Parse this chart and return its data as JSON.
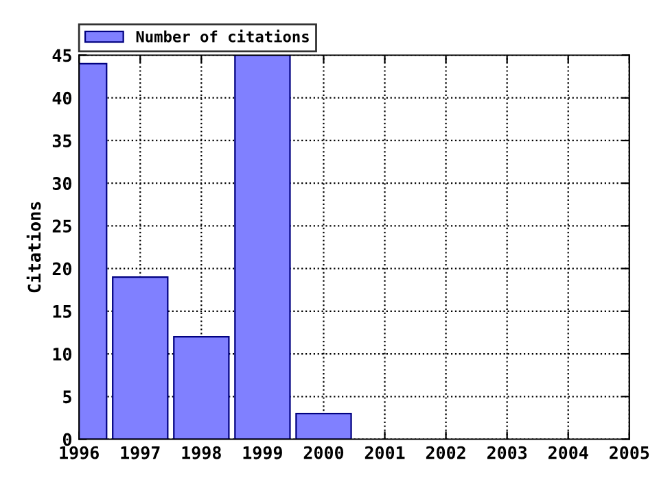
{
  "chart_data": {
    "type": "bar",
    "ylabel": "Citations",
    "x": [
      1996,
      1997,
      1998,
      1999,
      2000
    ],
    "series": [
      {
        "name": "Number of citations",
        "color": "#8080ff",
        "values": [
          44,
          19,
          12,
          45,
          3
        ]
      }
    ],
    "xlim": [
      1996,
      2005
    ],
    "xticks": [
      1996,
      1997,
      1998,
      1999,
      2000,
      2001,
      2002,
      2003,
      2004,
      2005
    ],
    "ylim": [
      0,
      45
    ],
    "yticks": [
      0,
      5,
      10,
      15,
      20,
      25,
      30,
      35,
      40,
      45
    ],
    "grid": true,
    "legend": "top left"
  }
}
